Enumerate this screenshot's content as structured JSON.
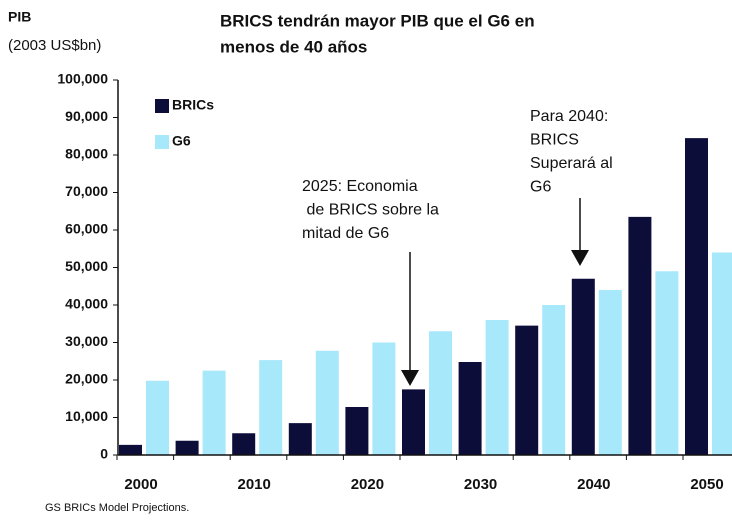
{
  "chart_data": {
    "type": "bar",
    "title": [
      "BRICS tendrán mayor PIB que el G6 en",
      "menos de 40 años"
    ],
    "y_label": [
      "PIB",
      "(2003 US$bn)"
    ],
    "annotations": [
      [
        "2025: Economia",
        " de BRICS sobre la",
        "mitad de G6"
      ],
      [
        "Para 2040:",
        "BRICS",
        "Superará al",
        "G6"
      ]
    ],
    "source": "GS BRICs Model Projections.",
    "categories": [
      "2000",
      null,
      "2010",
      null,
      "2020",
      null,
      "2030",
      null,
      "2040",
      null,
      "2050"
    ],
    "series": [
      {
        "name": "BRICs",
        "color": "#0d0d3a",
        "values": [
          2700,
          3800,
          5800,
          8500,
          12800,
          17500,
          24800,
          34500,
          47000,
          63500,
          84500
        ]
      },
      {
        "name": "G6",
        "color": "#a8e8fb",
        "values": [
          19800,
          22500,
          25300,
          27800,
          30000,
          33000,
          36000,
          40000,
          44000,
          49000,
          54000
        ]
      }
    ],
    "ylim": [
      0,
      100000
    ],
    "yticks": [
      0,
      {
        "value": 10000,
        "label": "10,000"
      },
      {
        "value": 20000,
        "label": "20,000"
      },
      {
        "value": 30000,
        "label": "30,000"
      },
      {
        "value": 40000,
        "label": "40,000"
      },
      {
        "value": 50000,
        "label": "50,000"
      },
      {
        "value": 60000,
        "label": "60,000"
      },
      {
        "value": 70000,
        "label": "70,000"
      },
      {
        "value": 80000,
        "label": "80,000"
      },
      {
        "value": 90000,
        "label": "90,000"
      },
      {
        "value": 100000,
        "label": "100,000"
      }
    ],
    "legend": "upper left"
  }
}
